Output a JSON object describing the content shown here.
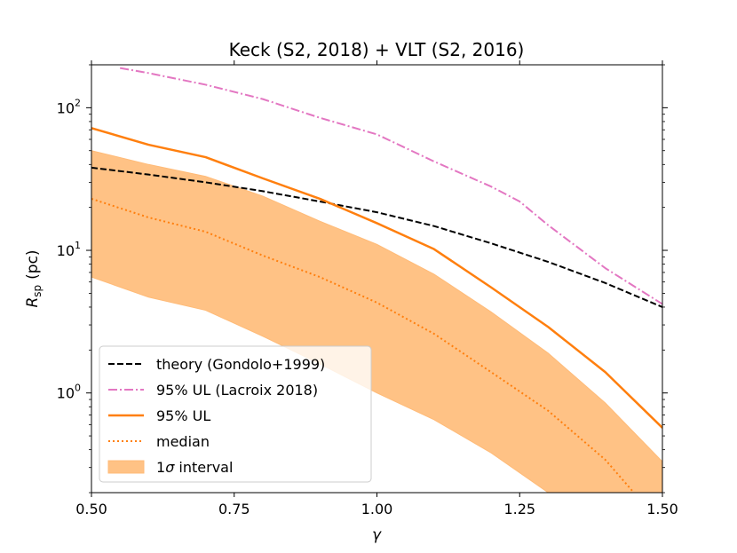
{
  "chart_data": {
    "type": "line",
    "title": "Keck (S2, 2018) + VLT (S2, 2016)",
    "xlabel": "γ",
    "ylabel_main": "R",
    "ylabel_sub": "sp",
    "ylabel_unit": "(pc)",
    "xlim": [
      0.5,
      1.5
    ],
    "ylim": [
      0.2,
      200
    ],
    "yscale": "log",
    "x_ticks": [
      0.5,
      0.75,
      1.0,
      1.25,
      1.5
    ],
    "x_tick_labels": [
      "0.50",
      "0.75",
      "1.00",
      "1.25",
      "1.50"
    ],
    "y_ticks": [
      1,
      10,
      100
    ],
    "y_tick_base": "10",
    "y_tick_exponents": [
      "0",
      "1",
      "2"
    ],
    "legend_position": "lower-left",
    "series": [
      {
        "name": "theory (Gondolo+1999)",
        "color": "#000000",
        "style": "dashed",
        "x": [
          0.5,
          0.6,
          0.7,
          0.8,
          0.9,
          1.0,
          1.1,
          1.2,
          1.3,
          1.4,
          1.5
        ],
        "y": [
          38,
          34,
          30,
          26,
          22,
          18.5,
          14.8,
          11.2,
          8.3,
          5.9,
          4.0
        ]
      },
      {
        "name": "95% UL (Lacroix 2018)",
        "color": "#e377c2",
        "style": "dashdot",
        "x": [
          0.55,
          0.6,
          0.7,
          0.8,
          0.9,
          1.0,
          1.1,
          1.2,
          1.25,
          1.3,
          1.4,
          1.5
        ],
        "y": [
          190,
          175,
          145,
          115,
          85,
          65,
          42,
          28,
          22,
          15,
          7.5,
          4.2
        ]
      },
      {
        "name": "95% UL",
        "color": "#ff7f0e",
        "style": "solid",
        "x": [
          0.5,
          0.6,
          0.7,
          0.8,
          0.9,
          1.0,
          1.1,
          1.2,
          1.3,
          1.4,
          1.5
        ],
        "y": [
          72,
          55,
          45,
          32,
          23,
          15.5,
          10.2,
          5.5,
          2.9,
          1.4,
          0.57
        ]
      },
      {
        "name": "median",
        "color": "#ff7f0e",
        "style": "dotted",
        "x": [
          0.5,
          0.6,
          0.7,
          0.8,
          0.9,
          1.0,
          1.1,
          1.2,
          1.3,
          1.4,
          1.45
        ],
        "y": [
          23,
          17,
          13.5,
          9.2,
          6.5,
          4.3,
          2.6,
          1.4,
          0.75,
          0.34,
          0.2
        ]
      }
    ],
    "band": {
      "name": "1σ interval",
      "color": "#ffbb78",
      "x": [
        0.5,
        0.6,
        0.7,
        0.8,
        0.9,
        1.0,
        1.1,
        1.2,
        1.3,
        1.4,
        1.5
      ],
      "upper": [
        50,
        40,
        33,
        24,
        16,
        11,
        6.8,
        3.7,
        1.9,
        0.85,
        0.33
      ],
      "lower": [
        6.5,
        4.7,
        3.8,
        2.5,
        1.6,
        1.0,
        0.65,
        0.38,
        0.2,
        0.2,
        0.2
      ]
    },
    "legend": [
      {
        "label": "theory (Gondolo+1999)",
        "kind": "dashed",
        "color": "#000000"
      },
      {
        "label": "95% UL (Lacroix 2018)",
        "kind": "dashdot",
        "color": "#e377c2"
      },
      {
        "label": "95% UL",
        "kind": "solid",
        "color": "#ff7f0e"
      },
      {
        "label": "median",
        "kind": "dotted",
        "color": "#ff7f0e"
      },
      {
        "label_main": "1",
        "label_sigma": "σ",
        "label_rest": " interval",
        "kind": "patch",
        "color": "#ffbb78"
      }
    ]
  }
}
